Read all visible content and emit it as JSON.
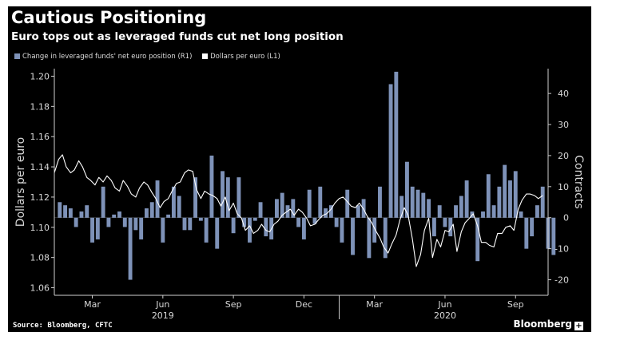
{
  "header": {
    "title": "Cautious Positioning",
    "subtitle": "Euro tops out as leveraged funds cut net long position"
  },
  "footer": {
    "source": "Source: Bloomberg, CFTC",
    "brand": "Bloomberg",
    "brand_mark": "+"
  },
  "colors": {
    "background": "#000000",
    "bar": "#7e92b8",
    "line": "#ffffff",
    "text": "#d8d8d8"
  },
  "chart_data": {
    "type": "bar+line",
    "title": "Cautious Positioning",
    "subtitle": "Euro tops out as leveraged funds cut net long position",
    "legend": [
      {
        "name": "Change in leveraged funds' net euro position (R1)",
        "type": "bar",
        "axis": "right"
      },
      {
        "name": "Dollars per euro (L1)",
        "type": "line",
        "axis": "left"
      }
    ],
    "left_axis": {
      "label": "Dollars per euro",
      "range": [
        1.055,
        1.205
      ],
      "ticks": [
        1.06,
        1.08,
        1.1,
        1.12,
        1.14,
        1.16,
        1.18,
        1.2
      ],
      "tick_labels": [
        "1.06",
        "1.08",
        "1.10",
        "1.12",
        "1.14",
        "1.16",
        "1.18",
        "1.20"
      ]
    },
    "right_axis": {
      "label": "Contracts",
      "range": [
        -25,
        48
      ],
      "ticks": [
        -20,
        -10,
        0,
        10,
        20,
        30,
        40
      ],
      "tick_labels": [
        "-20",
        "-10",
        "0",
        "10",
        "20",
        "30",
        "40"
      ]
    },
    "x_axis": {
      "month_ticks": [
        {
          "label": "Mar",
          "week": 7
        },
        {
          "label": "Jun",
          "week": 20
        },
        {
          "label": "Sep",
          "week": 33
        },
        {
          "label": "Dec",
          "week": 46
        },
        {
          "label": "Mar",
          "week": 59
        },
        {
          "label": "Jun",
          "week": 72
        },
        {
          "label": "Sep",
          "week": 85
        }
      ],
      "year_labels": [
        {
          "label": "2019",
          "week": 20
        },
        {
          "label": "2020",
          "week": 72
        }
      ],
      "start_week": 0,
      "end_week": 91
    },
    "bars": {
      "name": "Change in leveraged funds' net euro position (R1)",
      "week_start": 1,
      "week_step": 1,
      "values": [
        5,
        4,
        3,
        -3,
        2,
        4,
        -8,
        -7,
        10,
        -3,
        1,
        2,
        -3,
        -20,
        -4,
        -7,
        3,
        5,
        12,
        -8,
        1,
        10,
        7,
        -4,
        -4,
        13,
        -1,
        -8,
        20,
        -10,
        15,
        13,
        -5,
        13,
        -3,
        -8,
        -1,
        5,
        -6,
        -7,
        6,
        8,
        4,
        6,
        -3,
        -7,
        9,
        -2,
        10,
        3,
        4,
        -3,
        -8,
        9,
        -12,
        4,
        6,
        -13,
        -8,
        10,
        -13,
        43,
        47,
        7,
        18,
        10,
        9,
        8,
        6,
        -6,
        4,
        -3,
        -6,
        4,
        7,
        12,
        2,
        -14,
        2,
        14,
        4,
        10,
        17,
        12,
        15,
        2,
        -10,
        -6,
        4,
        10,
        -10,
        -12
      ]
    },
    "line": {
      "name": "Dollars per euro (L1)",
      "points": [
        [
          0.0,
          1.136
        ],
        [
          0.8,
          1.145
        ],
        [
          1.5,
          1.148
        ],
        [
          2.2,
          1.14
        ],
        [
          3.0,
          1.136
        ],
        [
          3.7,
          1.138
        ],
        [
          4.5,
          1.144
        ],
        [
          5.2,
          1.14
        ],
        [
          6.0,
          1.133
        ],
        [
          6.7,
          1.131
        ],
        [
          7.5,
          1.128
        ],
        [
          8.2,
          1.133
        ],
        [
          9.0,
          1.13
        ],
        [
          9.7,
          1.134
        ],
        [
          10.5,
          1.131
        ],
        [
          11.2,
          1.126
        ],
        [
          12.0,
          1.124
        ],
        [
          12.7,
          1.131
        ],
        [
          13.5,
          1.127
        ],
        [
          14.2,
          1.122
        ],
        [
          15.0,
          1.12
        ],
        [
          15.7,
          1.126
        ],
        [
          16.5,
          1.13
        ],
        [
          17.2,
          1.128
        ],
        [
          18.0,
          1.123
        ],
        [
          18.7,
          1.119
        ],
        [
          19.5,
          1.113
        ],
        [
          20.2,
          1.117
        ],
        [
          21.0,
          1.119
        ],
        [
          21.7,
          1.124
        ],
        [
          22.5,
          1.129
        ],
        [
          23.2,
          1.13
        ],
        [
          24.0,
          1.136
        ],
        [
          24.7,
          1.138
        ],
        [
          25.5,
          1.137
        ],
        [
          26.2,
          1.125
        ],
        [
          27.0,
          1.119
        ],
        [
          27.7,
          1.124
        ],
        [
          28.5,
          1.122
        ],
        [
          29.2,
          1.121
        ],
        [
          30.0,
          1.119
        ],
        [
          30.7,
          1.114
        ],
        [
          31.5,
          1.12
        ],
        [
          32.2,
          1.111
        ],
        [
          33.0,
          1.116
        ],
        [
          33.7,
          1.109
        ],
        [
          34.5,
          1.106
        ],
        [
          35.2,
          1.098
        ],
        [
          36.0,
          1.101
        ],
        [
          36.7,
          1.096
        ],
        [
          37.5,
          1.098
        ],
        [
          38.2,
          1.102
        ],
        [
          39.0,
          1.098
        ],
        [
          39.7,
          1.097
        ],
        [
          40.5,
          1.102
        ],
        [
          41.2,
          1.104
        ],
        [
          42.0,
          1.108
        ],
        [
          42.7,
          1.11
        ],
        [
          43.5,
          1.112
        ],
        [
          44.2,
          1.108
        ],
        [
          45.0,
          1.112
        ],
        [
          45.7,
          1.11
        ],
        [
          46.5,
          1.106
        ],
        [
          47.2,
          1.101
        ],
        [
          48.0,
          1.102
        ],
        [
          48.7,
          1.105
        ],
        [
          49.5,
          1.108
        ],
        [
          50.2,
          1.109
        ],
        [
          51.0,
          1.112
        ],
        [
          51.7,
          1.116
        ],
        [
          52.5,
          1.119
        ],
        [
          53.2,
          1.12
        ],
        [
          54.0,
          1.117
        ],
        [
          54.7,
          1.114
        ],
        [
          55.5,
          1.113
        ],
        [
          56.2,
          1.116
        ],
        [
          57.0,
          1.112
        ],
        [
          57.7,
          1.107
        ],
        [
          58.5,
          1.103
        ],
        [
          59.2,
          1.098
        ],
        [
          60.0,
          1.093
        ],
        [
          60.7,
          1.087
        ],
        [
          61.5,
          1.083
        ],
        [
          62.2,
          1.089
        ],
        [
          63.0,
          1.095
        ],
        [
          63.7,
          1.105
        ],
        [
          64.5,
          1.113
        ],
        [
          65.2,
          1.108
        ],
        [
          66.0,
          1.092
        ],
        [
          66.7,
          1.074
        ],
        [
          67.5,
          1.082
        ],
        [
          68.2,
          1.098
        ],
        [
          69.0,
          1.106
        ],
        [
          69.7,
          1.08
        ],
        [
          70.5,
          1.092
        ],
        [
          71.2,
          1.087
        ],
        [
          72.0,
          1.098
        ],
        [
          72.7,
          1.097
        ],
        [
          73.5,
          1.102
        ],
        [
          74.2,
          1.084
        ],
        [
          75.0,
          1.097
        ],
        [
          75.7,
          1.103
        ],
        [
          76.5,
          1.106
        ],
        [
          77.2,
          1.109
        ],
        [
          78.0,
          1.101
        ],
        [
          78.7,
          1.09
        ],
        [
          79.5,
          1.09
        ],
        [
          80.2,
          1.088
        ],
        [
          81.0,
          1.087
        ],
        [
          81.7,
          1.096
        ],
        [
          82.5,
          1.096
        ],
        [
          83.2,
          1.1
        ],
        [
          84.0,
          1.101
        ],
        [
          84.7,
          1.098
        ],
        [
          85.5,
          1.112
        ],
        [
          86.2,
          1.118
        ],
        [
          87.0,
          1.122
        ],
        [
          87.7,
          1.122
        ],
        [
          88.5,
          1.121
        ],
        [
          89.2,
          1.119
        ],
        [
          90.0,
          1.121
        ]
      ]
    }
  }
}
